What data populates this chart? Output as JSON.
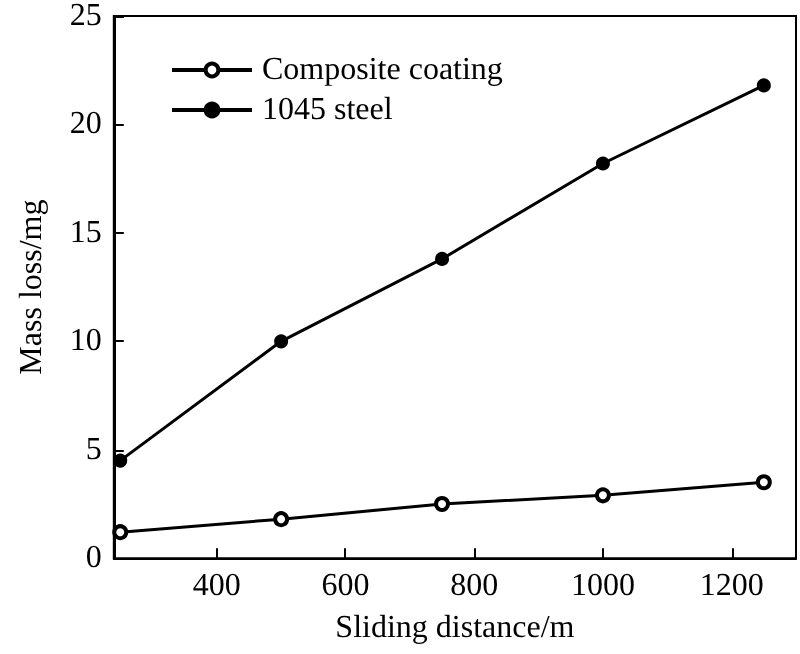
{
  "chart_data": {
    "type": "line",
    "xlabel": "Sliding distance/m",
    "ylabel": "Mass loss/mg",
    "x": [
      250,
      500,
      750,
      1000,
      1250
    ],
    "series": [
      {
        "name": "Composite coating",
        "color": "#000000",
        "values": [
          1.2,
          1.8,
          2.5,
          2.9,
          3.5
        ]
      },
      {
        "name": "1045 steel",
        "color": "#000000",
        "values": [
          4.5,
          10,
          13.8,
          18.2,
          21.8
        ]
      }
    ],
    "xlim": [
      240,
      1300
    ],
    "xticks": [
      400,
      600,
      800,
      1000,
      1200
    ],
    "ylim": [
      0,
      25
    ],
    "yticks": [
      0,
      5,
      10,
      15,
      20,
      25
    ],
    "grid": false,
    "legend": "top left",
    "marker": "circle",
    "line_style": "solid"
  }
}
